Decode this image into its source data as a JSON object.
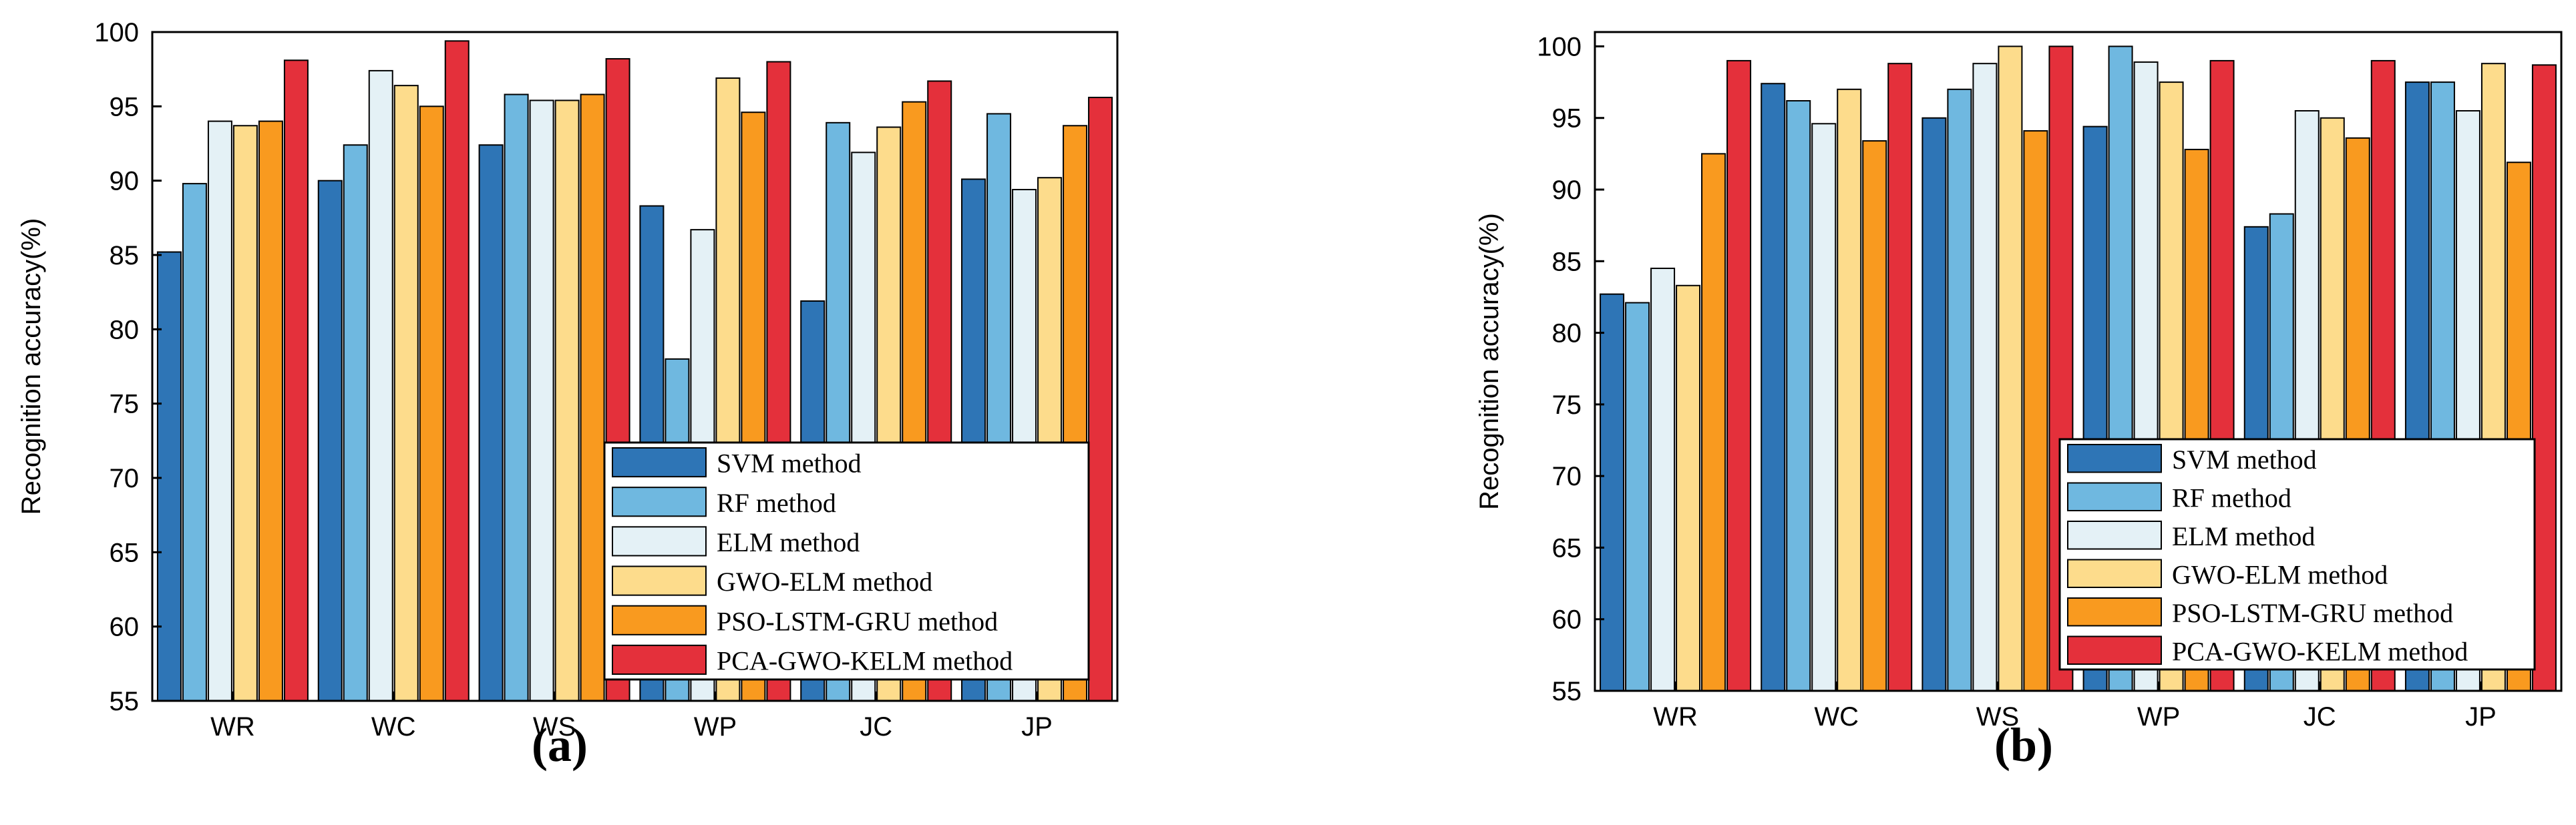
{
  "figure": {
    "panel_labels": [
      "(a)",
      "(b)"
    ]
  },
  "chart_data": [
    {
      "type": "bar",
      "panel_label": "(a)",
      "title": "",
      "xlabel": "",
      "ylabel": "Recognition accuracy(%)",
      "ylim": [
        55,
        100
      ],
      "yticks": [
        55,
        60,
        65,
        70,
        75,
        80,
        85,
        90,
        95,
        100
      ],
      "categories": [
        "WR",
        "WC",
        "WS",
        "WP",
        "JC",
        "JP"
      ],
      "grid": false,
      "legend_position": "bottom-right",
      "series": [
        {
          "name": "SVM method",
          "color": "#2E75B6",
          "values": [
            85.2,
            90.0,
            92.4,
            88.3,
            81.9,
            90.1
          ]
        },
        {
          "name": "RF method",
          "color": "#6FB8E0",
          "values": [
            89.8,
            92.4,
            95.8,
            78.0,
            93.9,
            94.5
          ]
        },
        {
          "name": "ELM method",
          "color": "#E4F1F6",
          "values": [
            94.0,
            97.4,
            95.4,
            86.7,
            91.9,
            89.4
          ]
        },
        {
          "name": "GWO-ELM method",
          "color": "#FDDC8C",
          "values": [
            93.7,
            96.4,
            95.4,
            96.9,
            93.6,
            90.2
          ]
        },
        {
          "name": "PSO-LSTM-GRU method",
          "color": "#F99A1F",
          "values": [
            94.0,
            95.0,
            95.8,
            94.6,
            95.3,
            93.7
          ]
        },
        {
          "name": "PCA-GWO-KELM method",
          "color": "#E4303B",
          "values": [
            98.1,
            99.4,
            98.2,
            98.0,
            96.7,
            95.6
          ]
        }
      ]
    },
    {
      "type": "bar",
      "panel_label": "(b)",
      "title": "",
      "xlabel": "",
      "ylabel": "Recognition accuracy(%)",
      "ylim": [
        55,
        101
      ],
      "yticks": [
        55,
        60,
        65,
        70,
        75,
        80,
        85,
        90,
        95,
        100
      ],
      "categories": [
        "WR",
        "WC",
        "WS",
        "WP",
        "JC",
        "JP"
      ],
      "grid": false,
      "legend_position": "bottom-right",
      "series": [
        {
          "name": "SVM method",
          "color": "#2E75B6",
          "values": [
            82.7,
            97.4,
            95.0,
            94.4,
            87.4,
            97.5
          ]
        },
        {
          "name": "RF method",
          "color": "#6FB8E0",
          "values": [
            82.1,
            96.2,
            97.0,
            100.0,
            88.3,
            97.5
          ]
        },
        {
          "name": "ELM method",
          "color": "#E4F1F6",
          "values": [
            84.5,
            94.6,
            98.8,
            98.9,
            95.5,
            95.5
          ]
        },
        {
          "name": "GWO-ELM method",
          "color": "#FDDC8C",
          "values": [
            83.3,
            97.0,
            100.0,
            97.5,
            95.0,
            98.8
          ]
        },
        {
          "name": "PSO-LSTM-GRU method",
          "color": "#F99A1F",
          "values": [
            92.5,
            93.4,
            94.1,
            92.8,
            93.6,
            91.9
          ]
        },
        {
          "name": "PCA-GWO-KELM method",
          "color": "#E4303B",
          "values": [
            99.0,
            98.8,
            100.0,
            99.0,
            99.0,
            98.7
          ]
        }
      ]
    }
  ]
}
